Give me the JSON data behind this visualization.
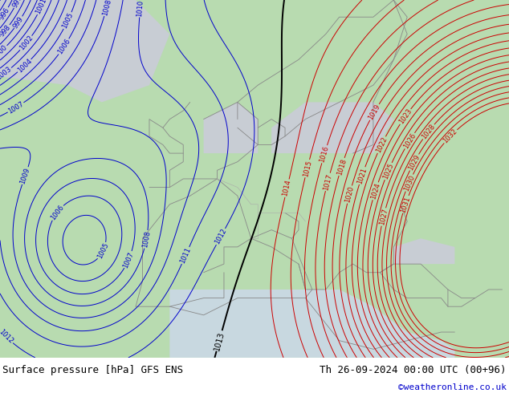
{
  "title_left": "Surface pressure [hPa] GFS ENS",
  "title_right": "Th 26-09-2024 00:00 UTC (00+96)",
  "copyright": "©weatheronline.co.uk",
  "background_land": "#b8dbb0",
  "background_sea_gray": "#c8cdd4",
  "background_sea_blue": "#c8d8e0",
  "contour_color_low": "#0000cc",
  "contour_color_high": "#cc0000",
  "contour_color_mid": "#000000",
  "footer_text_color": "#000000",
  "copyright_color": "#0000cc",
  "font_size_labels": 6,
  "font_size_footer": 9,
  "coast_color": "#888888",
  "border_color": "#aaaaaa"
}
